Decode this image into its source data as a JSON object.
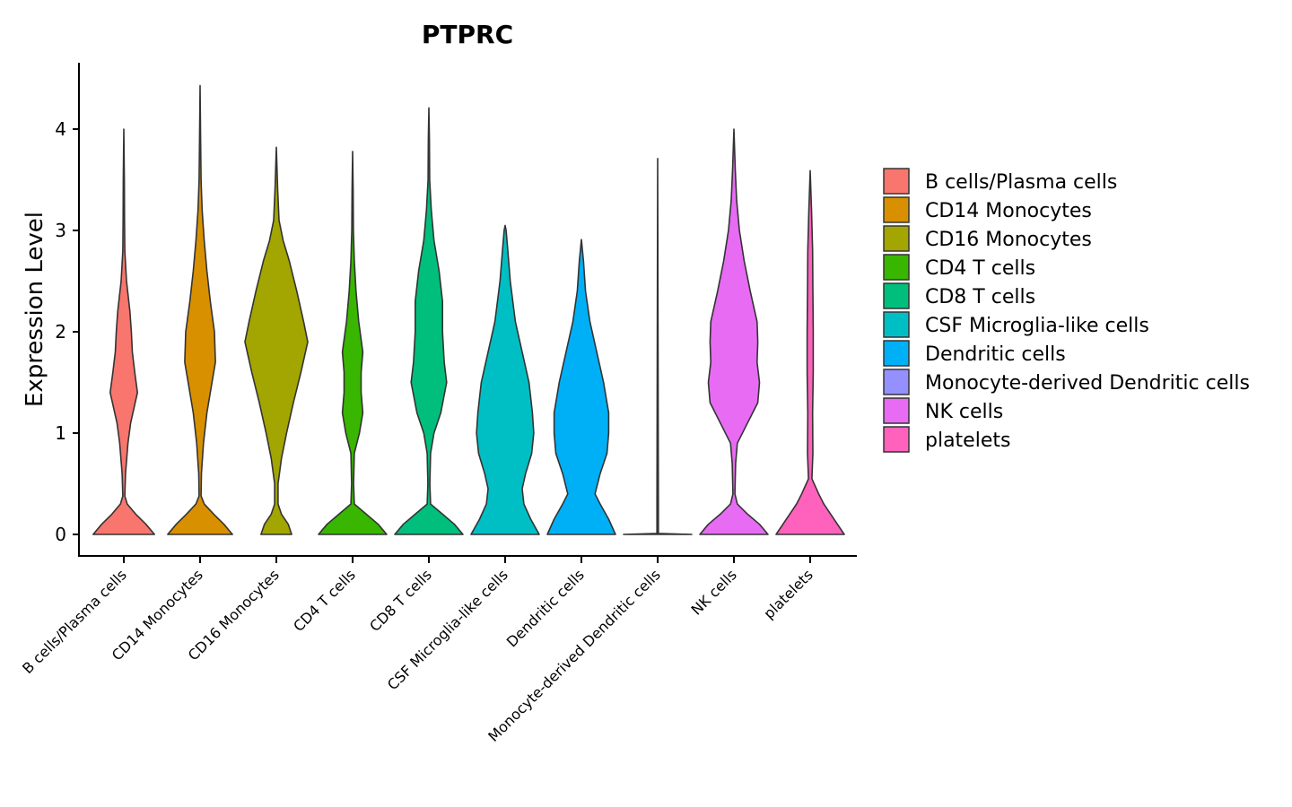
{
  "chart_data": {
    "type": "violin",
    "title": "PTPRC",
    "xlabel": "",
    "ylabel": "Expression Level",
    "ylim": [
      -0.2,
      4.7
    ],
    "yticks": [
      "0",
      "1",
      "2",
      "3",
      "4"
    ],
    "grid": false,
    "legend_position": "right",
    "categories": [
      "B cells/Plasma cells",
      "CD14 Monocytes",
      "CD16 Monocytes",
      "CD4 T cells",
      "CD8 T cells",
      "CSF Microglia-like cells",
      "Dendritic cells",
      "Monocyte-derived Dendritic cells",
      "NK cells",
      "platelets"
    ],
    "colors": [
      "#F8766D",
      "#D89000",
      "#A3A500",
      "#39B600",
      "#00BF7D",
      "#00BFC4",
      "#00B0F6",
      "#9590FF",
      "#E76BF3",
      "#FF62BC"
    ],
    "max_values": [
      4.0,
      4.43,
      3.82,
      3.78,
      4.21,
      3.05,
      2.91,
      3.71,
      4.0,
      3.59
    ],
    "density_profiles": [
      [
        [
          0,
          0.9
        ],
        [
          0.1,
          0.65
        ],
        [
          0.2,
          0.35
        ],
        [
          0.3,
          0.1
        ],
        [
          0.38,
          0.03
        ],
        [
          0.6,
          0.05
        ],
        [
          0.9,
          0.12
        ],
        [
          1.1,
          0.2
        ],
        [
          1.25,
          0.3
        ],
        [
          1.4,
          0.4
        ],
        [
          1.6,
          0.32
        ],
        [
          1.8,
          0.25
        ],
        [
          2.0,
          0.22
        ],
        [
          2.2,
          0.18
        ],
        [
          2.5,
          0.08
        ],
        [
          2.8,
          0.03
        ],
        [
          3.1,
          0.02
        ],
        [
          3.5,
          0.015
        ],
        [
          4.0,
          0
        ]
      ],
      [
        [
          0,
          0.95
        ],
        [
          0.1,
          0.7
        ],
        [
          0.2,
          0.4
        ],
        [
          0.3,
          0.12
        ],
        [
          0.38,
          0.03
        ],
        [
          0.6,
          0.04
        ],
        [
          0.9,
          0.1
        ],
        [
          1.2,
          0.2
        ],
        [
          1.5,
          0.35
        ],
        [
          1.7,
          0.45
        ],
        [
          2.0,
          0.42
        ],
        [
          2.3,
          0.3
        ],
        [
          2.6,
          0.2
        ],
        [
          2.9,
          0.12
        ],
        [
          3.2,
          0.06
        ],
        [
          3.5,
          0.03
        ],
        [
          3.9,
          0.015
        ],
        [
          4.43,
          0
        ]
      ],
      [
        [
          0,
          0.45
        ],
        [
          0.1,
          0.35
        ],
        [
          0.2,
          0.15
        ],
        [
          0.3,
          0.05
        ],
        [
          0.5,
          0.05
        ],
        [
          0.75,
          0.15
        ],
        [
          1.0,
          0.3
        ],
        [
          1.3,
          0.5
        ],
        [
          1.6,
          0.72
        ],
        [
          1.9,
          0.92
        ],
        [
          2.1,
          0.8
        ],
        [
          2.4,
          0.6
        ],
        [
          2.7,
          0.38
        ],
        [
          2.9,
          0.2
        ],
        [
          3.1,
          0.08
        ],
        [
          3.4,
          0.04
        ],
        [
          3.82,
          0
        ]
      ],
      [
        [
          0,
          1.0
        ],
        [
          0.1,
          0.75
        ],
        [
          0.2,
          0.4
        ],
        [
          0.3,
          0.05
        ],
        [
          0.5,
          0.03
        ],
        [
          0.8,
          0.05
        ],
        [
          1.0,
          0.2
        ],
        [
          1.2,
          0.3
        ],
        [
          1.4,
          0.25
        ],
        [
          1.6,
          0.25
        ],
        [
          1.8,
          0.3
        ],
        [
          2.1,
          0.18
        ],
        [
          2.4,
          0.1
        ],
        [
          2.7,
          0.05
        ],
        [
          3.0,
          0.025
        ],
        [
          3.4,
          0.015
        ],
        [
          3.78,
          0
        ]
      ],
      [
        [
          0,
          1.0
        ],
        [
          0.1,
          0.75
        ],
        [
          0.2,
          0.4
        ],
        [
          0.3,
          0.05
        ],
        [
          0.5,
          0.03
        ],
        [
          0.8,
          0.05
        ],
        [
          1.0,
          0.15
        ],
        [
          1.2,
          0.35
        ],
        [
          1.5,
          0.52
        ],
        [
          1.7,
          0.45
        ],
        [
          2.0,
          0.4
        ],
        [
          2.3,
          0.4
        ],
        [
          2.6,
          0.3
        ],
        [
          2.9,
          0.15
        ],
        [
          3.2,
          0.07
        ],
        [
          3.5,
          0.025
        ],
        [
          3.9,
          0.015
        ],
        [
          4.21,
          0
        ]
      ],
      [
        [
          0,
          1.0
        ],
        [
          0.15,
          0.75
        ],
        [
          0.3,
          0.55
        ],
        [
          0.45,
          0.5
        ],
        [
          0.6,
          0.6
        ],
        [
          0.8,
          0.78
        ],
        [
          1.0,
          0.84
        ],
        [
          1.2,
          0.8
        ],
        [
          1.5,
          0.7
        ],
        [
          1.8,
          0.5
        ],
        [
          2.1,
          0.3
        ],
        [
          2.5,
          0.15
        ],
        [
          2.8,
          0.08
        ],
        [
          3.0,
          0.03
        ],
        [
          3.05,
          0
        ]
      ],
      [
        [
          0,
          1.0
        ],
        [
          0.15,
          0.8
        ],
        [
          0.3,
          0.55
        ],
        [
          0.4,
          0.4
        ],
        [
          0.6,
          0.55
        ],
        [
          0.8,
          0.75
        ],
        [
          1.0,
          0.8
        ],
        [
          1.2,
          0.8
        ],
        [
          1.5,
          0.65
        ],
        [
          1.8,
          0.45
        ],
        [
          2.1,
          0.25
        ],
        [
          2.4,
          0.12
        ],
        [
          2.7,
          0.06
        ],
        [
          2.91,
          0
        ]
      ],
      [
        [
          0,
          1.0
        ],
        [
          0.01,
          0.02
        ],
        [
          0.3,
          0.02
        ],
        [
          3.71,
          0
        ]
      ],
      [
        [
          0,
          1.0
        ],
        [
          0.1,
          0.75
        ],
        [
          0.2,
          0.4
        ],
        [
          0.3,
          0.1
        ],
        [
          0.4,
          0.03
        ],
        [
          0.7,
          0.05
        ],
        [
          0.9,
          0.1
        ],
        [
          1.1,
          0.4
        ],
        [
          1.3,
          0.7
        ],
        [
          1.5,
          0.75
        ],
        [
          1.7,
          0.68
        ],
        [
          1.9,
          0.7
        ],
        [
          2.1,
          0.68
        ],
        [
          2.4,
          0.48
        ],
        [
          2.7,
          0.3
        ],
        [
          3.0,
          0.16
        ],
        [
          3.3,
          0.08
        ],
        [
          3.6,
          0.04
        ],
        [
          4.0,
          0
        ]
      ],
      [
        [
          0,
          1.0
        ],
        [
          0.1,
          0.8
        ],
        [
          0.2,
          0.6
        ],
        [
          0.3,
          0.4
        ],
        [
          0.4,
          0.25
        ],
        [
          0.55,
          0.05
        ],
        [
          0.8,
          0.08
        ],
        [
          1.2,
          0.07
        ],
        [
          1.6,
          0.09
        ],
        [
          2.0,
          0.09
        ],
        [
          2.4,
          0.08
        ],
        [
          2.8,
          0.07
        ],
        [
          3.2,
          0.04
        ],
        [
          3.59,
          0
        ]
      ]
    ]
  }
}
